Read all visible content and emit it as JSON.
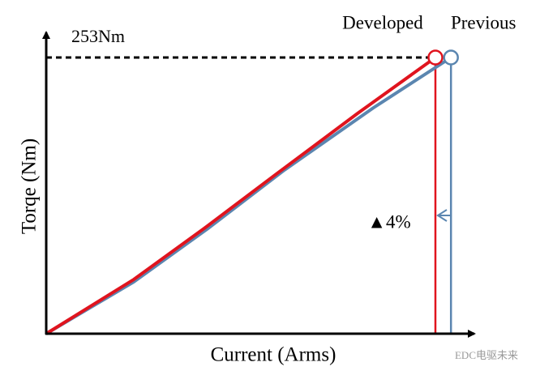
{
  "chart_data": {
    "type": "line",
    "x_label": "Current (Arms)",
    "y_label": "Torqe (Nm)",
    "xlim": [
      0,
      110
    ],
    "ylim": [
      0,
      276
    ],
    "series": [
      {
        "name": "Developed",
        "color": "#e0141e",
        "x": [
          0,
          22.5,
          40.3,
          59.1,
          80,
          100
        ],
        "values": [
          0,
          49.7,
          95.7,
          146.2,
          201.8,
          253
        ]
      },
      {
        "name": "Previous",
        "color": "#5b86b0",
        "x": [
          0,
          22.5,
          41.3,
          61.2,
          84.1,
          104
        ],
        "values": [
          0,
          47.5,
          95.7,
          149.9,
          207,
          253
        ]
      }
    ],
    "reference_line": {
      "value": 253,
      "label": "253Nm"
    },
    "delta_label": "▲4%",
    "watermark": "EDC电驱未来"
  }
}
